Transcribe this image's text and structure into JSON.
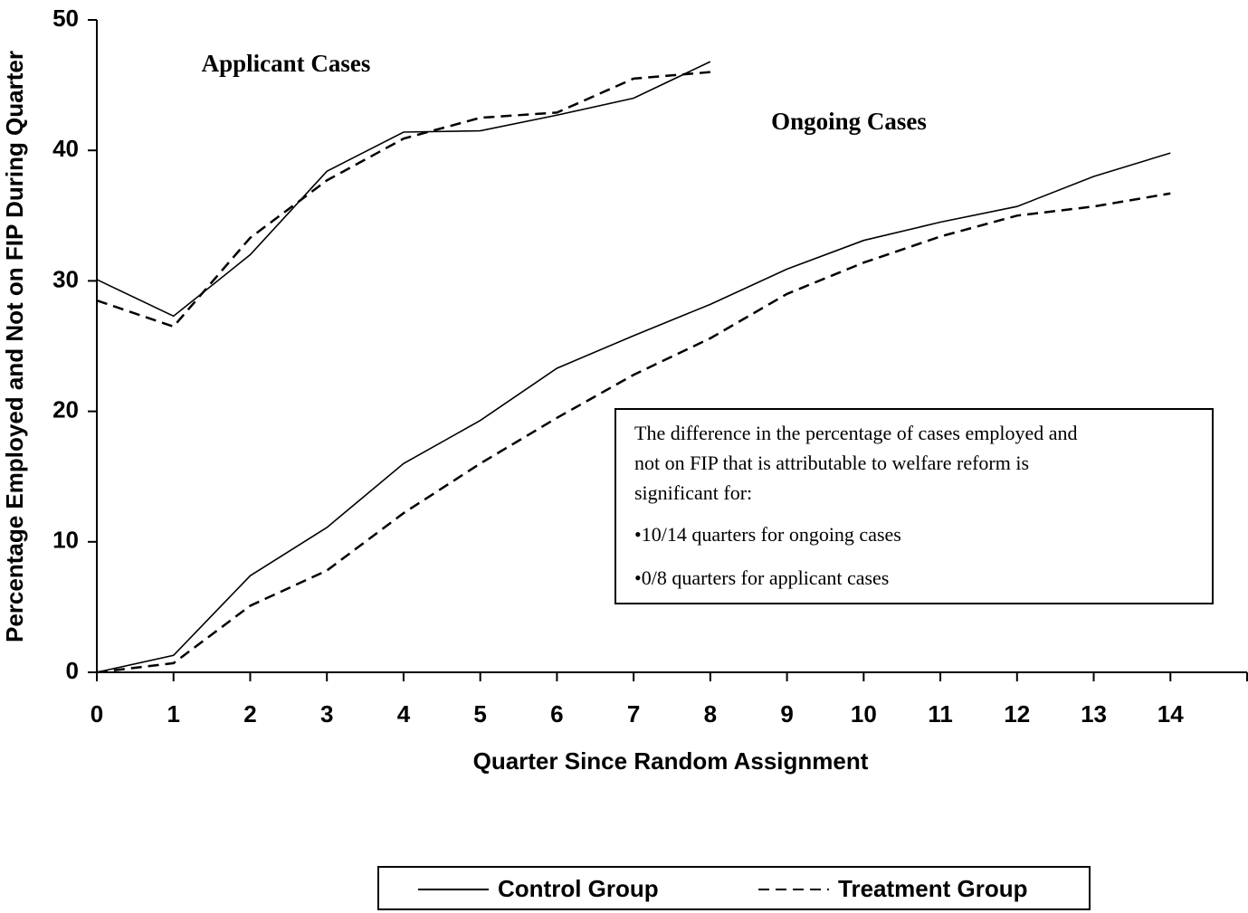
{
  "chart_data": {
    "type": "line",
    "y_label": "Percentage Employed and Not on FIP During Quarter",
    "x_label": "Quarter Since Random Assignment",
    "x": [
      0,
      1,
      2,
      3,
      4,
      5,
      6,
      7,
      8,
      9,
      10,
      11,
      12,
      13,
      14
    ],
    "xlim": [
      0,
      15
    ],
    "xticks": [
      0,
      1,
      2,
      3,
      4,
      5,
      6,
      7,
      8,
      9,
      10,
      11,
      12,
      13,
      14
    ],
    "ylim": [
      0,
      50
    ],
    "yticks": [
      0,
      10,
      20,
      30,
      40,
      50
    ],
    "series": [
      {
        "name": "Control Group",
        "color": "#000000",
        "dashed": false
      },
      {
        "name": "Treatment Group",
        "color": "#000000",
        "dashed": true
      }
    ],
    "groups": [
      {
        "label": "Applicant Cases",
        "series": [
          {
            "values": [
              30.1,
              27.3,
              32.0,
              38.4,
              41.4,
              41.5,
              42.7,
              44.0,
              46.8,
              null,
              null,
              null,
              null,
              null,
              null
            ]
          },
          {
            "values": [
              28.5,
              26.5,
              33.3,
              37.7,
              40.9,
              42.5,
              42.9,
              45.5,
              46.0,
              null,
              null,
              null,
              null,
              null,
              null
            ]
          }
        ]
      },
      {
        "label": "Ongoing Cases",
        "series": [
          {
            "values": [
              0,
              1.3,
              7.4,
              11.1,
              16.0,
              19.3,
              23.3,
              25.8,
              28.2,
              30.9,
              33.1,
              34.5,
              35.7,
              38.0,
              39.8
            ]
          },
          {
            "values": [
              0,
              0.7,
              5.1,
              7.8,
              12.2,
              16.0,
              19.5,
              22.8,
              25.6,
              29.0,
              31.4,
              33.4,
              35.0,
              35.7,
              36.7
            ]
          }
        ]
      }
    ],
    "note": {
      "lines": [
        "The difference in the percentage of cases employed and",
        "not on FIP that is attributable to welfare reform is",
        "significant for:"
      ],
      "bullets": [
        "•10/14 quarters for ongoing cases",
        "•0/8 quarters for applicant cases"
      ]
    }
  }
}
